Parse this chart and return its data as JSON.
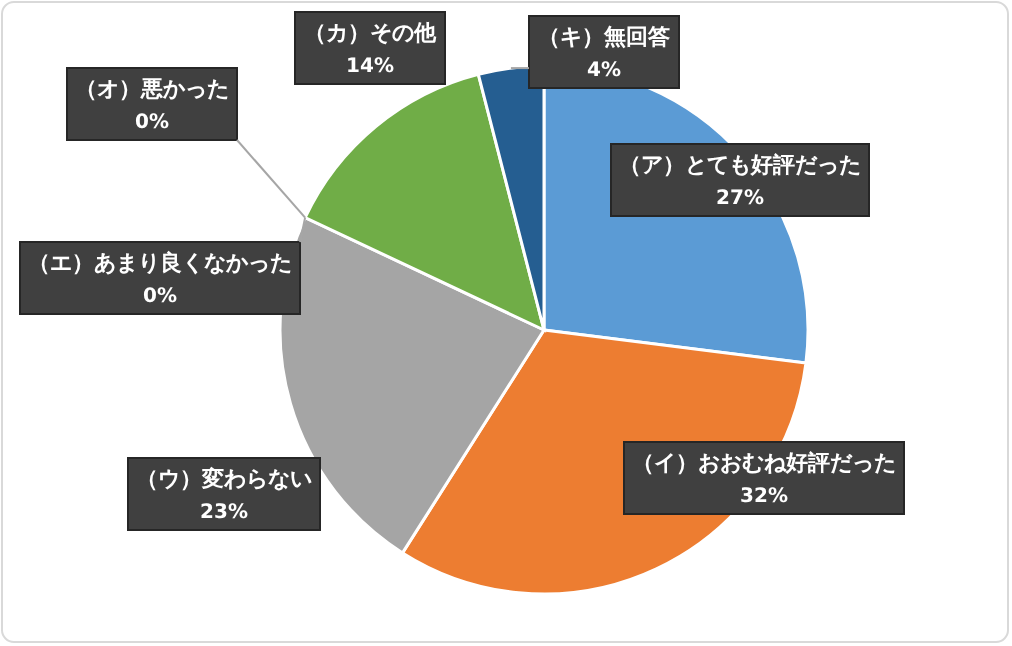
{
  "chart_data": {
    "type": "pie",
    "categories": [
      "（ア）とても好評だった",
      "（イ）おおむね好評だった",
      "（ウ）変わらない",
      "（エ）あまり良くなかった",
      "（オ）悪かった",
      "（カ）その他",
      "（キ）無回答"
    ],
    "values": [
      27,
      32,
      23,
      0,
      0,
      14,
      4
    ],
    "colors": [
      "#5b9bd5",
      "#ed7d31",
      "#a5a5a5",
      null,
      null,
      "#70ad47",
      "#255e91"
    ],
    "value_labels": [
      "27%",
      "32%",
      "23%",
      "0%",
      "0%",
      "14%",
      "4%"
    ]
  }
}
